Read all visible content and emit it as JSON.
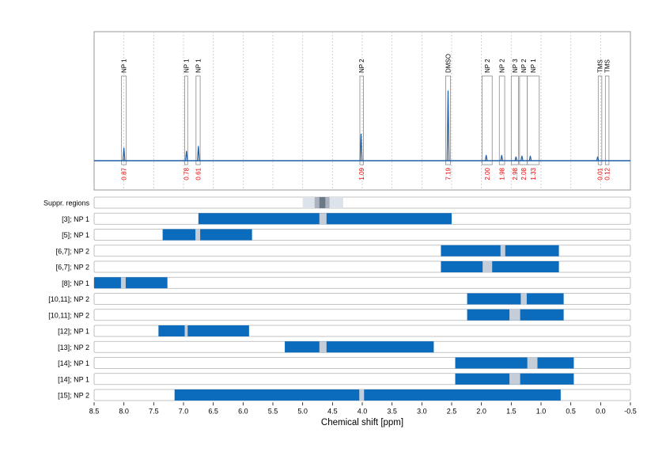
{
  "chart_data": {
    "type": "nmr-spectrum-with-range-bars",
    "xlabel": "Chemical shift [ppm]",
    "x_axis": {
      "reversed": true,
      "range": [
        8.5,
        -0.5
      ],
      "ticks": [
        8.5,
        8.0,
        7.5,
        7.0,
        6.5,
        6.0,
        5.5,
        5.0,
        4.5,
        4.0,
        3.5,
        3.0,
        2.5,
        2.0,
        1.5,
        1.0,
        0.5,
        0.0,
        -0.5
      ],
      "tick_labels": [
        "8.5",
        "8.0",
        "7.5",
        "7.0",
        "6.5",
        "6.0",
        "5.5",
        "5.0",
        "4.5",
        "4.0",
        "3.5",
        "3.0",
        "2.5",
        "2.0",
        "1.5",
        "1.0",
        "0.5",
        "0.0",
        "-0.5"
      ]
    },
    "spectrum_color": "#1f5fa8",
    "bar_color": "#0b6bbd",
    "gap_color": "#c5ced8",
    "annotation_color": "#e60000",
    "peaks": [
      {
        "ppm": 8.0,
        "height": 0.16
      },
      {
        "ppm": 6.95,
        "height": 0.12
      },
      {
        "ppm": 6.75,
        "height": 0.18
      },
      {
        "ppm": 4.02,
        "height": 0.33
      },
      {
        "ppm": 2.56,
        "height": 0.86
      },
      {
        "ppm": 1.92,
        "height": 0.07
      },
      {
        "ppm": 1.66,
        "height": 0.07
      },
      {
        "ppm": 1.42,
        "height": 0.05
      },
      {
        "ppm": 1.32,
        "height": 0.06
      },
      {
        "ppm": 1.18,
        "height": 0.06
      },
      {
        "ppm": 0.05,
        "height": 0.05
      }
    ],
    "annotations": [
      {
        "label": "NP 1",
        "value": "0.87",
        "from": 8.04,
        "to": 7.96
      },
      {
        "label": "NP 1",
        "value": "0.78",
        "from": 6.98,
        "to": 6.93
      },
      {
        "label": "NP 1",
        "value": "0.61",
        "from": 6.79,
        "to": 6.72
      },
      {
        "label": "NP 2",
        "value": "1.09",
        "from": 4.04,
        "to": 3.98
      },
      {
        "label": "DMSO",
        "value": "7.19",
        "from": 2.6,
        "to": 2.52
      },
      {
        "label": "NP 2",
        "value": "2.00",
        "from": 1.99,
        "to": 1.82
      },
      {
        "label": "NP 2",
        "value": "1.98",
        "from": 1.7,
        "to": 1.61
      },
      {
        "label": "NP 3",
        "value": "2.98",
        "from": 1.5,
        "to": 1.38
      },
      {
        "label": "NP 2",
        "value": "2.08",
        "from": 1.36,
        "to": 1.23
      },
      {
        "label": "NP 1",
        "value": "1.33",
        "from": 1.23,
        "to": 1.03
      },
      {
        "label": "TMS",
        "value": "0.01",
        "from": 0.04,
        "to": -0.02
      },
      {
        "label": "TMS",
        "value": "0.12",
        "from": -0.08,
        "to": -0.14
      }
    ],
    "suppressed_regions": {
      "label": "Suppr. regions",
      "light": [
        5.0,
        4.32
      ],
      "mid": [
        4.8,
        4.55
      ],
      "dark": [
        4.72,
        4.62
      ]
    },
    "rows": [
      {
        "label": "[3]; NP 1",
        "from": 6.75,
        "to": 2.5,
        "gap": [
          4.72,
          4.6
        ]
      },
      {
        "label": "[5]; NP 1",
        "from": 7.35,
        "to": 5.85,
        "gap": [
          6.8,
          6.72
        ]
      },
      {
        "label": "[6,7]; NP 2",
        "from": 2.68,
        "to": 0.7,
        "gap": [
          1.68,
          1.6
        ]
      },
      {
        "label": "[6,7]; NP 2",
        "from": 2.68,
        "to": 0.7,
        "gap": [
          1.98,
          1.82
        ]
      },
      {
        "label": "[8]; NP 1",
        "from": 8.52,
        "to": 7.27,
        "gap": [
          8.05,
          7.97
        ]
      },
      {
        "label": "[10,11]; NP 2",
        "from": 2.24,
        "to": 0.62,
        "gap": [
          1.34,
          1.24
        ]
      },
      {
        "label": "[10,11]; NP 2",
        "from": 2.24,
        "to": 0.62,
        "gap": [
          1.53,
          1.35
        ]
      },
      {
        "label": "[12]; NP 1",
        "from": 7.42,
        "to": 5.9,
        "gap": [
          6.98,
          6.93
        ]
      },
      {
        "label": "[13]; NP 2",
        "from": 5.3,
        "to": 2.8,
        "gap": [
          4.72,
          4.6
        ]
      },
      {
        "label": "[14]; NP 1",
        "from": 2.44,
        "to": 0.45,
        "gap": [
          1.23,
          1.06
        ]
      },
      {
        "label": "[14]; NP 1",
        "from": 2.44,
        "to": 0.45,
        "gap": [
          1.53,
          1.35
        ]
      },
      {
        "label": "[15]; NP 2",
        "from": 7.15,
        "to": 0.67,
        "gap": [
          4.05,
          3.97
        ]
      }
    ]
  }
}
